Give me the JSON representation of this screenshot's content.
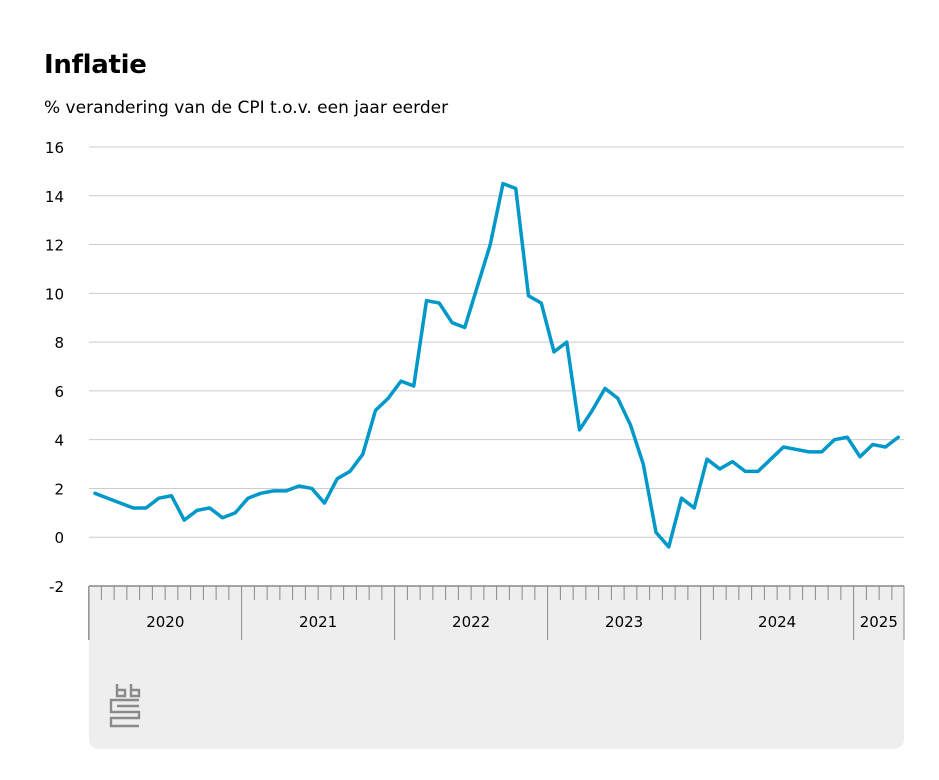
{
  "chart_data": {
    "type": "line",
    "title": "Inflatie",
    "subtitle": "% verandering van de CPI t.o.v. een jaar eerder",
    "ylim": [
      -2,
      16
    ],
    "yticks": [
      16,
      14,
      12,
      10,
      8,
      6,
      4,
      2,
      0,
      -2
    ],
    "year_labels": [
      "2020",
      "2021",
      "2022",
      "2023",
      "2024",
      "2025"
    ],
    "grid": true,
    "series": [
      {
        "color": "#0098c8",
        "x": [
          "2020-01",
          "2020-02",
          "2020-03",
          "2020-04",
          "2020-05",
          "2020-06",
          "2020-07",
          "2020-08",
          "2020-09",
          "2020-10",
          "2020-11",
          "2020-12",
          "2021-01",
          "2021-02",
          "2021-03",
          "2021-04",
          "2021-05",
          "2021-06",
          "2021-07",
          "2021-08",
          "2021-09",
          "2021-10",
          "2021-11",
          "2021-12",
          "2022-01",
          "2022-02",
          "2022-03",
          "2022-04",
          "2022-05",
          "2022-06",
          "2022-07",
          "2022-08",
          "2022-09",
          "2022-10",
          "2022-11",
          "2022-12",
          "2023-01",
          "2023-02",
          "2023-03",
          "2023-04",
          "2023-05",
          "2023-06",
          "2023-07",
          "2023-08",
          "2023-09",
          "2023-10",
          "2023-11",
          "2023-12",
          "2024-01",
          "2024-02",
          "2024-03",
          "2024-04",
          "2024-05",
          "2024-06",
          "2024-07",
          "2024-08",
          "2024-09",
          "2024-10",
          "2024-11",
          "2024-12",
          "2025-01",
          "2025-02",
          "2025-03",
          "2025-04"
        ],
        "values": [
          1.8,
          1.6,
          1.4,
          1.2,
          1.2,
          1.6,
          1.7,
          0.7,
          1.1,
          1.2,
          0.8,
          1.0,
          1.6,
          1.8,
          1.9,
          1.9,
          2.1,
          2.0,
          1.4,
          2.4,
          2.7,
          3.4,
          5.2,
          5.7,
          6.4,
          6.2,
          9.7,
          9.6,
          8.8,
          8.6,
          10.3,
          12.0,
          14.5,
          14.3,
          9.9,
          9.6,
          7.6,
          8.0,
          4.4,
          5.2,
          6.1,
          5.7,
          4.6,
          3.0,
          0.2,
          -0.4,
          1.6,
          1.2,
          3.2,
          2.8,
          3.1,
          2.7,
          2.7,
          3.2,
          3.7,
          3.6,
          3.5,
          3.5,
          4.0,
          4.1,
          3.3,
          3.8,
          3.7,
          4.1
        ]
      }
    ]
  },
  "logo": {
    "icon": "cbs-logo-icon",
    "color": "#8a8a8a"
  },
  "colors": {
    "axis": "#888888",
    "grid": "#cccccc",
    "panel": "#eeeeee"
  }
}
